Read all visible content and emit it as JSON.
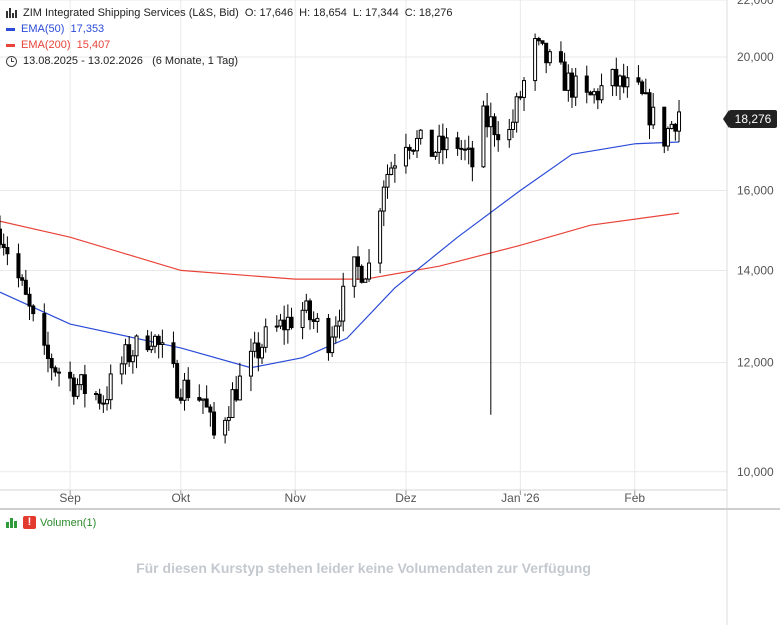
{
  "legend": {
    "title": "ZIM Integrated Shipping Services (L&S, Bid)",
    "o_label": "O:",
    "o_value": "17,646",
    "h_label": "H:",
    "h_value": "18,654",
    "l_label": "L:",
    "l_value": "17,344",
    "c_label": "C:",
    "c_value": "18,276",
    "ema50_label": "EMA(50)",
    "ema50_value": "17,353",
    "ema200_label": "EMA(200)",
    "ema200_value": "15,407",
    "range": "13.08.2025 - 13.02.2026",
    "period": "(6 Monate, 1 Tag)"
  },
  "last_price": "18,276",
  "colors": {
    "candle": "#000000",
    "ema50": "#2b4bd8",
    "ema200": "#e8443a",
    "grid": "#e9e9e9"
  },
  "volume": {
    "label": "Volumen(1)",
    "message": "Für diesen Kurstyp stehen leider keine Volumendaten zur Verfügung"
  },
  "chart_data": {
    "type": "candlestick",
    "y_scale": "log",
    "ylim": [
      9.7,
      22.0
    ],
    "y_ticks": [
      10,
      12,
      14,
      16,
      20,
      22
    ],
    "y_tick_labels": [
      "10,000",
      "12,000",
      "14,000",
      "16,000",
      "20,000",
      "22,000"
    ],
    "x_ticks": [
      {
        "date": "2025-09-01",
        "label": "Sep"
      },
      {
        "date": "2025-10-01",
        "label": "Okt"
      },
      {
        "date": "2025-11-01",
        "label": "Nov"
      },
      {
        "date": "2025-12-01",
        "label": "Dez"
      },
      {
        "date": "2026-01-01",
        "label": "Jan '26"
      },
      {
        "date": "2026-02-01",
        "label": "Feb"
      }
    ],
    "x_range": [
      "2025-08-13",
      "2026-02-26"
    ],
    "anchors": [
      {
        "date": "2025-08-13",
        "value": 15.0
      },
      {
        "date": "2025-08-18",
        "value": 13.8
      },
      {
        "date": "2025-08-25",
        "value": 12.1
      },
      {
        "date": "2025-09-02",
        "value": 11.6
      },
      {
        "date": "2025-09-10",
        "value": 11.3
      },
      {
        "date": "2025-09-16",
        "value": 12.1
      },
      {
        "date": "2025-09-23",
        "value": 12.6
      },
      {
        "date": "2025-09-30",
        "value": 11.6
      },
      {
        "date": "2025-10-07",
        "value": 11.3
      },
      {
        "date": "2025-10-10",
        "value": 10.6
      },
      {
        "date": "2025-10-16",
        "value": 11.5
      },
      {
        "date": "2025-10-24",
        "value": 12.5
      },
      {
        "date": "2025-11-03",
        "value": 13.1
      },
      {
        "date": "2025-11-10",
        "value": 12.5
      },
      {
        "date": "2025-11-17",
        "value": 14.0
      },
      {
        "date": "2025-11-21",
        "value": 14.1
      },
      {
        "date": "2025-11-25",
        "value": 16.3
      },
      {
        "date": "2025-12-01",
        "value": 17.5
      },
      {
        "date": "2025-12-08",
        "value": 17.1
      },
      {
        "date": "2025-12-15",
        "value": 17.3
      },
      {
        "date": "2025-12-19",
        "value": 16.7
      },
      {
        "date": "2025-12-22",
        "value": 18.0
      },
      {
        "date": "2025-12-29",
        "value": 17.6
      },
      {
        "date": "2026-01-05",
        "value": 20.3
      },
      {
        "date": "2026-01-12",
        "value": 19.4
      },
      {
        "date": "2026-01-19",
        "value": 18.6
      },
      {
        "date": "2026-01-26",
        "value": 19.2
      },
      {
        "date": "2026-02-02",
        "value": 18.8
      },
      {
        "date": "2026-02-09",
        "value": 17.5
      },
      {
        "date": "2026-02-13",
        "value": 18.276
      }
    ],
    "spike_low": {
      "date": "2025-12-24",
      "value": 11.0
    },
    "ema50": [
      {
        "date": "2025-08-13",
        "value": 13.5
      },
      {
        "date": "2025-09-01",
        "value": 12.8
      },
      {
        "date": "2025-10-01",
        "value": 12.3
      },
      {
        "date": "2025-10-20",
        "value": 11.9
      },
      {
        "date": "2025-11-03",
        "value": 12.1
      },
      {
        "date": "2025-11-15",
        "value": 12.5
      },
      {
        "date": "2025-11-28",
        "value": 13.6
      },
      {
        "date": "2025-12-15",
        "value": 14.8
      },
      {
        "date": "2026-01-01",
        "value": 16.0
      },
      {
        "date": "2026-01-15",
        "value": 17.0
      },
      {
        "date": "2026-02-01",
        "value": 17.3
      },
      {
        "date": "2026-02-13",
        "value": 17.353
      }
    ],
    "ema200": [
      {
        "date": "2025-08-13",
        "value": 15.2
      },
      {
        "date": "2025-09-01",
        "value": 14.8
      },
      {
        "date": "2025-10-01",
        "value": 14.0
      },
      {
        "date": "2025-11-01",
        "value": 13.8
      },
      {
        "date": "2025-11-20",
        "value": 13.8
      },
      {
        "date": "2025-12-10",
        "value": 14.1
      },
      {
        "date": "2026-01-01",
        "value": 14.6
      },
      {
        "date": "2026-01-20",
        "value": 15.1
      },
      {
        "date": "2026-02-13",
        "value": 15.407
      }
    ]
  }
}
